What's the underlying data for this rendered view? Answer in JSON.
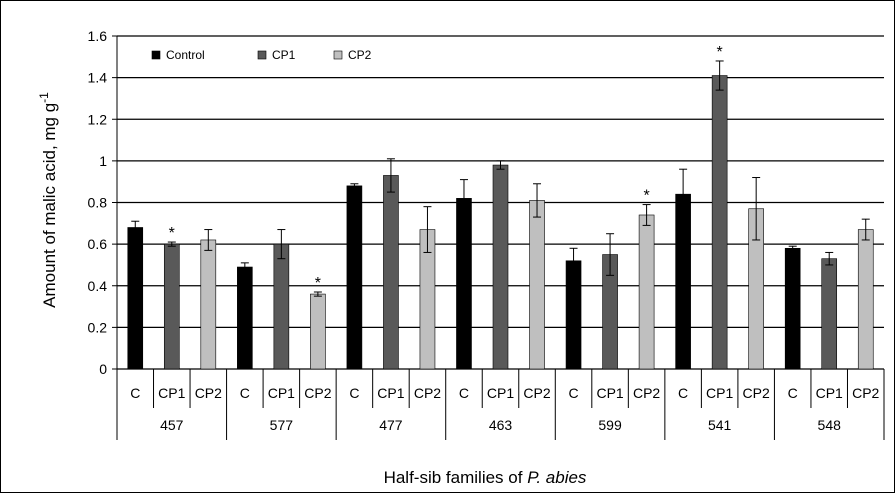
{
  "chart_data": {
    "type": "bar",
    "title": "",
    "xlabel": "Half-sib families of ",
    "xlabel_italic": "P. abies",
    "ylabel": "Amount of malic acid, mg g",
    "ylabel_sup": "-1",
    "ylim": [
      0,
      1.6
    ],
    "yticks": [
      "0",
      "0.2",
      "0.4",
      "0.6",
      "0.8",
      "1",
      "1.2",
      "1.4",
      "1.6"
    ],
    "ytick_values": [
      0,
      0.2,
      0.4,
      0.6,
      0.8,
      1.0,
      1.2,
      1.4,
      1.6
    ],
    "grid": true,
    "legend_position": "top-left",
    "subcategories": [
      "C",
      "CP1",
      "CP2"
    ],
    "groups": [
      "457",
      "577",
      "477",
      "463",
      "599",
      "541",
      "548"
    ],
    "series": [
      {
        "name": "Control",
        "color": "#000000",
        "values": [
          0.68,
          0.49,
          0.88,
          0.82,
          0.52,
          0.84,
          0.58
        ],
        "errors": [
          0.03,
          0.02,
          0.01,
          0.09,
          0.06,
          0.12,
          0.01
        ]
      },
      {
        "name": "CP1",
        "color": "#595959",
        "values": [
          0.6,
          0.6,
          0.93,
          0.98,
          0.55,
          1.41,
          0.53
        ],
        "errors": [
          0.01,
          0.07,
          0.08,
          0.02,
          0.1,
          0.07,
          0.03
        ]
      },
      {
        "name": "CP2",
        "color": "#bfbfbf",
        "values": [
          0.62,
          0.36,
          0.67,
          0.81,
          0.74,
          0.77,
          0.67
        ],
        "errors": [
          0.05,
          0.01,
          0.11,
          0.08,
          0.05,
          0.15,
          0.05
        ]
      }
    ],
    "significance_mark": "*",
    "significance": [
      [
        0,
        1
      ],
      [
        1,
        2
      ],
      [
        4,
        2
      ],
      [
        5,
        1
      ]
    ]
  }
}
